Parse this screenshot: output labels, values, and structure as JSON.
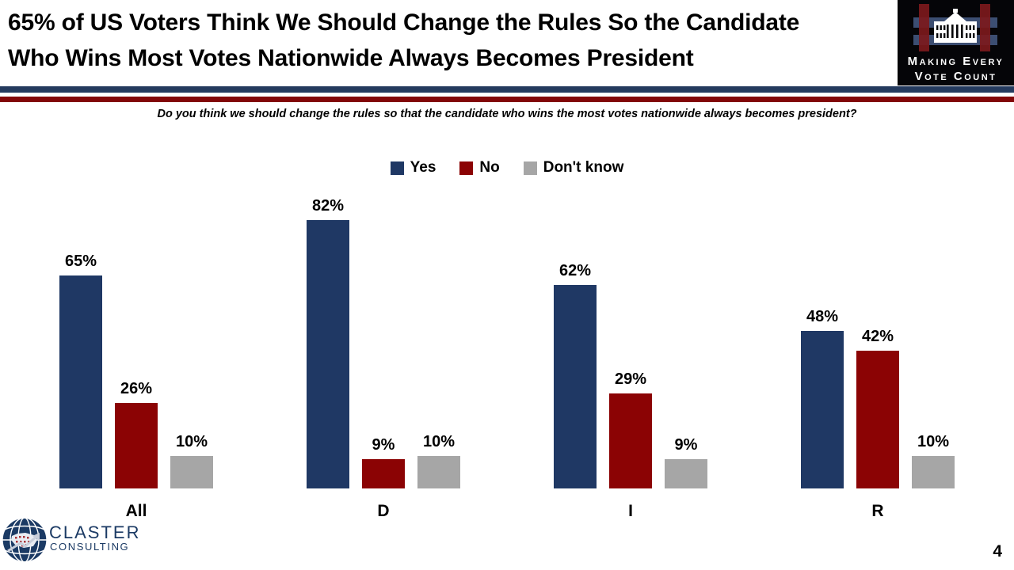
{
  "slide": {
    "title_line1": "65% of US Voters Think We Should Change the Rules So the Candidate",
    "title_line2": "Who Wins Most Votes Nationwide Always Becomes President",
    "question": "Do you think we should change the rules so that the candidate who wins the most votes nationwide always becomes president?",
    "page_number": "4"
  },
  "mevc_logo": {
    "line1": "Making Every",
    "line2": "Vote Count"
  },
  "footer_logo": {
    "name": "CLASTER",
    "subtitle": "CONSULTING"
  },
  "theme": {
    "background": "#FFFFFF",
    "divider_navy": "#243A5E",
    "divider_red": "#820608",
    "footer_text": "#1B3A64",
    "logo_background": "#050508"
  },
  "chart_data": {
    "type": "bar",
    "title": "65% of US Voters Think We Should Change the Rules So the Candidate Who Wins Most Votes Nationwide Always Becomes President",
    "subtitle": "Do you think we should change the rules so that the candidate who wins the most votes nationwide always becomes president?",
    "categories": [
      "All",
      "D",
      "I",
      "R"
    ],
    "series": [
      {
        "name": "Yes",
        "color": "#1F3864",
        "values": [
          65,
          82,
          62,
          48
        ]
      },
      {
        "name": "No",
        "color": "#8B0304",
        "values": [
          26,
          9,
          29,
          42
        ]
      },
      {
        "name": "Don't know",
        "color": "#A6A6A6",
        "values": [
          10,
          10,
          9,
          10
        ]
      }
    ],
    "value_suffix": "%",
    "xlabel": "",
    "ylabel": "",
    "ylim": [
      0,
      100
    ],
    "grid": false,
    "legend_position": "top",
    "data_labels": true
  }
}
